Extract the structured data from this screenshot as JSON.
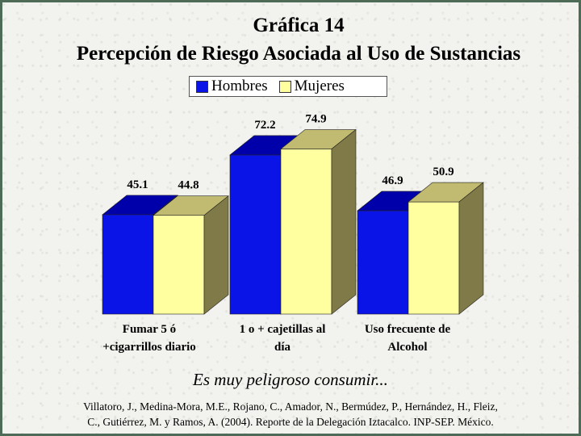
{
  "chart_data": {
    "type": "bar",
    "title": "Gráfica 14",
    "subtitle": "Percepción de Riesgo Asociada al Uso de Sustancias",
    "categories": [
      [
        "Fumar 5 ó",
        "+cigarrillos diario"
      ],
      [
        "1 o + cajetillas al",
        "día"
      ],
      [
        "Uso frecuente de",
        "Alcohol"
      ]
    ],
    "series": [
      {
        "name": "Hombres",
        "values": [
          45.1,
          72.2,
          46.9
        ],
        "labels": [
          "45.1",
          "72.2",
          "46.9"
        ],
        "color": "#0a14e6",
        "top": "#0000aa",
        "side": "#00007a"
      },
      {
        "name": "Mujeres",
        "values": [
          44.8,
          74.9,
          50.9
        ],
        "labels": [
          "44.8",
          "74.9",
          "50.9"
        ],
        "color": "#ffffa0",
        "top": "#c0bb70",
        "side": "#807a48"
      }
    ],
    "legend": "top",
    "grid": false,
    "ylim": [
      0,
      80
    ]
  },
  "caption": "Es muy peligroso consumir...",
  "citation": [
    "Villatoro, J., Medina-Mora, M.E., Rojano, C., Amador, N., Bermúdez, P., Hernández, H., Fleiz,",
    "C., Gutiérrez, M. y Ramos, A. (2004). Reporte de la Delegación Iztacalco. INP-SEP. México."
  ]
}
